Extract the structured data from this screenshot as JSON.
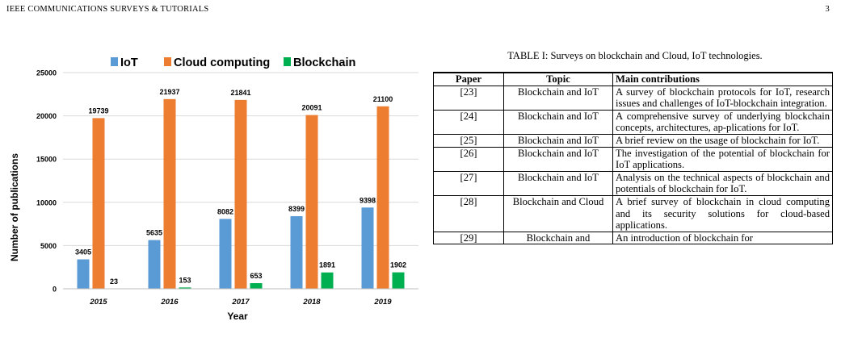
{
  "header": {
    "journal": "IEEE COMMUNICATIONS SURVEYS & TUTORIALS",
    "page_number": "3"
  },
  "chart_data": {
    "type": "bar",
    "categories": [
      "2015",
      "2016",
      "2017",
      "2018",
      "2019"
    ],
    "series": [
      {
        "name": "IoT",
        "color": "#5B9BD5",
        "values": [
          3405,
          5635,
          8082,
          8399,
          9398
        ]
      },
      {
        "name": "Cloud computing",
        "color": "#ED7D31",
        "values": [
          19739,
          21937,
          21841,
          20091,
          21100
        ]
      },
      {
        "name": "Blockchain",
        "color": "#00B050",
        "values": [
          23,
          153,
          653,
          1891,
          1902
        ]
      }
    ],
    "yticks": [
      0,
      5000,
      10000,
      15000,
      20000,
      25000
    ],
    "ylim": [
      0,
      25000
    ],
    "xlabel": "Year",
    "ylabel": "Number of publications",
    "legend_position": "top",
    "grid": true
  },
  "table": {
    "caption": "TABLE I: Surveys on blockchain and Cloud, IoT technologies.",
    "headers": [
      "Paper",
      "Topic",
      "Main contributions"
    ],
    "rows": [
      {
        "paper": "[23]",
        "topic": "Blockchain and IoT",
        "contribution": "A survey of blockchain protocols for IoT, research issues and challenges of IoT-blockchain integration."
      },
      {
        "paper": "[24]",
        "topic": "Blockchain and IoT",
        "contribution": "A comprehensive survey of underlying blockchain concepts, architectures, ap-plications for IoT."
      },
      {
        "paper": "[25]",
        "topic": "Blockchain and IoT",
        "contribution": "A brief review on the usage of blockchain for IoT."
      },
      {
        "paper": "[26]",
        "topic": "Blockchain and IoT",
        "contribution": "The investigation of the potential of blockchain for IoT applications."
      },
      {
        "paper": "[27]",
        "topic": "Blockchain and IoT",
        "contribution": "Analysis on the technical aspects of blockchain and potentials of blockchain for IoT."
      },
      {
        "paper": "[28]",
        "topic": "Blockchain and Cloud",
        "contribution": "A brief survey of blockchain in cloud computing and its security solutions for cloud-based applications."
      },
      {
        "paper": "[29]",
        "topic": "Blockchain and",
        "contribution": "An introduction of blockchain for"
      }
    ]
  }
}
